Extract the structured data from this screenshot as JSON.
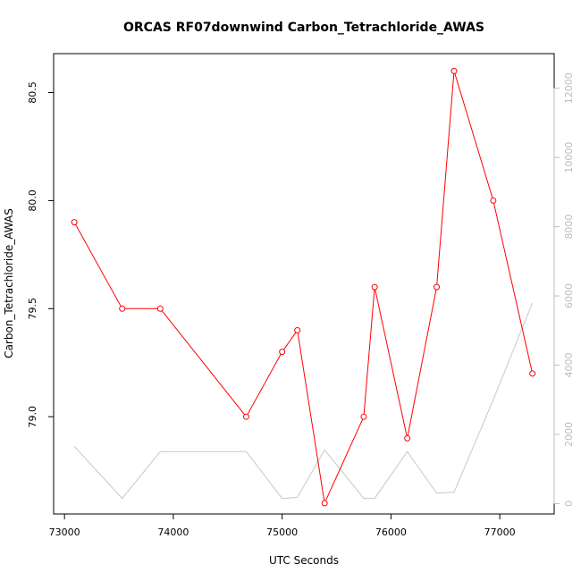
{
  "chart_data": {
    "type": "line",
    "title": "ORCAS RF07downwind Carbon_Tetrachloride_AWAS",
    "xlabel": "UTC Seconds",
    "ylabel": "Carbon_Tetrachloride_AWAS",
    "xlim": [
      72900,
      77500
    ],
    "ylim": [
      78.55,
      80.68
    ],
    "y2lim": [
      -300,
      13000
    ],
    "x_ticks": [
      73000,
      74000,
      75000,
      76000,
      77000
    ],
    "x_tick_labels": [
      "73000",
      "74000",
      "75000",
      "76000",
      "77000"
    ],
    "y_ticks": [
      79.0,
      79.5,
      80.0,
      80.5
    ],
    "y_tick_labels": [
      "79.0",
      "79.5",
      "80.0",
      "80.5"
    ],
    "y2_ticks": [
      0,
      2000,
      4000,
      6000,
      8000,
      10000,
      12000
    ],
    "y2_tick_labels": [
      "0",
      "2000",
      "4000",
      "6000",
      "8000",
      "10000",
      "12000"
    ],
    "grid": false,
    "colors": {
      "primary": "#ff0000",
      "secondary": "#c8c8c8",
      "axis": "#000000",
      "right_axis": "#bdbdbd"
    },
    "series": [
      {
        "axis": "left",
        "marker": "circle",
        "x": [
          73090,
          73530,
          73880,
          74670,
          75000,
          75140,
          75390,
          75750,
          75850,
          76150,
          76420,
          76580,
          76940,
          77300
        ],
        "y": [
          79.9,
          79.5,
          79.5,
          79.0,
          79.3,
          79.4,
          78.6,
          79.0,
          79.6,
          78.9,
          79.6,
          80.6,
          80.0,
          79.2
        ]
      },
      {
        "axis": "right",
        "marker": "none",
        "x": [
          73090,
          73530,
          73880,
          74670,
          75000,
          75140,
          75390,
          75750,
          75850,
          76150,
          76420,
          76580,
          76940,
          77300
        ],
        "y": [
          1650,
          150,
          1500,
          1500,
          150,
          180,
          1550,
          150,
          150,
          1500,
          300,
          330,
          3000,
          5800
        ]
      }
    ]
  }
}
